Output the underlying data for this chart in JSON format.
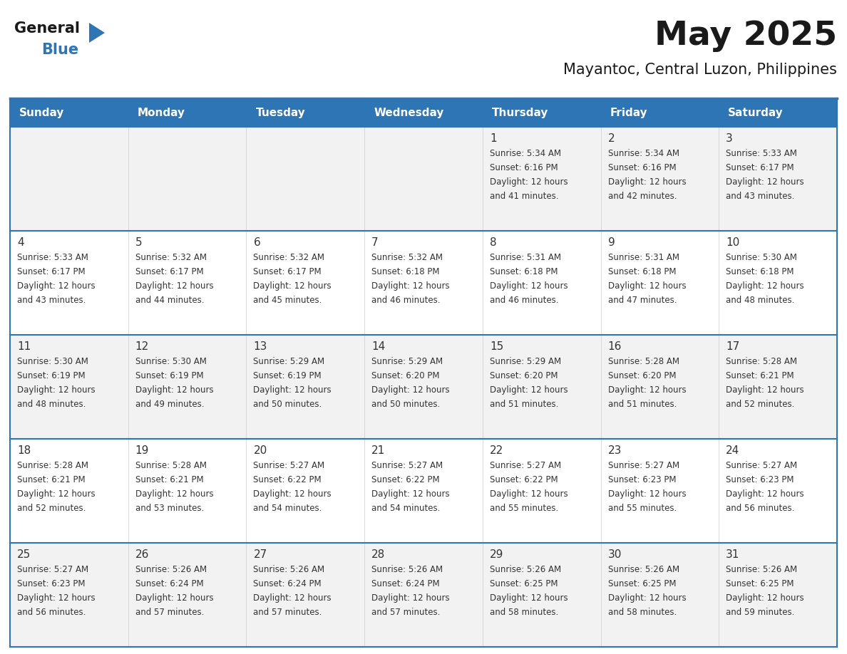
{
  "title": "May 2025",
  "subtitle": "Mayantoc, Central Luzon, Philippines",
  "header_bg": "#2E75B6",
  "header_text_color": "#FFFFFF",
  "cell_bg_odd": "#F2F2F2",
  "cell_bg_even": "#FFFFFF",
  "text_color_dark": "#333333",
  "text_color_day": "#2E75B6",
  "border_color": "#2E75B6",
  "cell_border_color": "#CCCCCC",
  "logo_text_color": "#1A1A1A",
  "logo_blue_color": "#2E75B6",
  "day_headers": [
    "Sunday",
    "Monday",
    "Tuesday",
    "Wednesday",
    "Thursday",
    "Friday",
    "Saturday"
  ],
  "calendar": [
    [
      null,
      null,
      null,
      null,
      {
        "day": 1,
        "sunrise": "5:34 AM",
        "sunset": "6:16 PM",
        "daylight": "12 hours and 41 minutes."
      },
      {
        "day": 2,
        "sunrise": "5:34 AM",
        "sunset": "6:16 PM",
        "daylight": "12 hours and 42 minutes."
      },
      {
        "day": 3,
        "sunrise": "5:33 AM",
        "sunset": "6:17 PM",
        "daylight": "12 hours and 43 minutes."
      }
    ],
    [
      {
        "day": 4,
        "sunrise": "5:33 AM",
        "sunset": "6:17 PM",
        "daylight": "12 hours and 43 minutes."
      },
      {
        "day": 5,
        "sunrise": "5:32 AM",
        "sunset": "6:17 PM",
        "daylight": "12 hours and 44 minutes."
      },
      {
        "day": 6,
        "sunrise": "5:32 AM",
        "sunset": "6:17 PM",
        "daylight": "12 hours and 45 minutes."
      },
      {
        "day": 7,
        "sunrise": "5:32 AM",
        "sunset": "6:18 PM",
        "daylight": "12 hours and 46 minutes."
      },
      {
        "day": 8,
        "sunrise": "5:31 AM",
        "sunset": "6:18 PM",
        "daylight": "12 hours and 46 minutes."
      },
      {
        "day": 9,
        "sunrise": "5:31 AM",
        "sunset": "6:18 PM",
        "daylight": "12 hours and 47 minutes."
      },
      {
        "day": 10,
        "sunrise": "5:30 AM",
        "sunset": "6:18 PM",
        "daylight": "12 hours and 48 minutes."
      }
    ],
    [
      {
        "day": 11,
        "sunrise": "5:30 AM",
        "sunset": "6:19 PM",
        "daylight": "12 hours and 48 minutes."
      },
      {
        "day": 12,
        "sunrise": "5:30 AM",
        "sunset": "6:19 PM",
        "daylight": "12 hours and 49 minutes."
      },
      {
        "day": 13,
        "sunrise": "5:29 AM",
        "sunset": "6:19 PM",
        "daylight": "12 hours and 50 minutes."
      },
      {
        "day": 14,
        "sunrise": "5:29 AM",
        "sunset": "6:20 PM",
        "daylight": "12 hours and 50 minutes."
      },
      {
        "day": 15,
        "sunrise": "5:29 AM",
        "sunset": "6:20 PM",
        "daylight": "12 hours and 51 minutes."
      },
      {
        "day": 16,
        "sunrise": "5:28 AM",
        "sunset": "6:20 PM",
        "daylight": "12 hours and 51 minutes."
      },
      {
        "day": 17,
        "sunrise": "5:28 AM",
        "sunset": "6:21 PM",
        "daylight": "12 hours and 52 minutes."
      }
    ],
    [
      {
        "day": 18,
        "sunrise": "5:28 AM",
        "sunset": "6:21 PM",
        "daylight": "12 hours and 52 minutes."
      },
      {
        "day": 19,
        "sunrise": "5:28 AM",
        "sunset": "6:21 PM",
        "daylight": "12 hours and 53 minutes."
      },
      {
        "day": 20,
        "sunrise": "5:27 AM",
        "sunset": "6:22 PM",
        "daylight": "12 hours and 54 minutes."
      },
      {
        "day": 21,
        "sunrise": "5:27 AM",
        "sunset": "6:22 PM",
        "daylight": "12 hours and 54 minutes."
      },
      {
        "day": 22,
        "sunrise": "5:27 AM",
        "sunset": "6:22 PM",
        "daylight": "12 hours and 55 minutes."
      },
      {
        "day": 23,
        "sunrise": "5:27 AM",
        "sunset": "6:23 PM",
        "daylight": "12 hours and 55 minutes."
      },
      {
        "day": 24,
        "sunrise": "5:27 AM",
        "sunset": "6:23 PM",
        "daylight": "12 hours and 56 minutes."
      }
    ],
    [
      {
        "day": 25,
        "sunrise": "5:27 AM",
        "sunset": "6:23 PM",
        "daylight": "12 hours and 56 minutes."
      },
      {
        "day": 26,
        "sunrise": "5:26 AM",
        "sunset": "6:24 PM",
        "daylight": "12 hours and 57 minutes."
      },
      {
        "day": 27,
        "sunrise": "5:26 AM",
        "sunset": "6:24 PM",
        "daylight": "12 hours and 57 minutes."
      },
      {
        "day": 28,
        "sunrise": "5:26 AM",
        "sunset": "6:24 PM",
        "daylight": "12 hours and 57 minutes."
      },
      {
        "day": 29,
        "sunrise": "5:26 AM",
        "sunset": "6:25 PM",
        "daylight": "12 hours and 58 minutes."
      },
      {
        "day": 30,
        "sunrise": "5:26 AM",
        "sunset": "6:25 PM",
        "daylight": "12 hours and 58 minutes."
      },
      {
        "day": 31,
        "sunrise": "5:26 AM",
        "sunset": "6:25 PM",
        "daylight": "12 hours and 59 minutes."
      }
    ]
  ]
}
